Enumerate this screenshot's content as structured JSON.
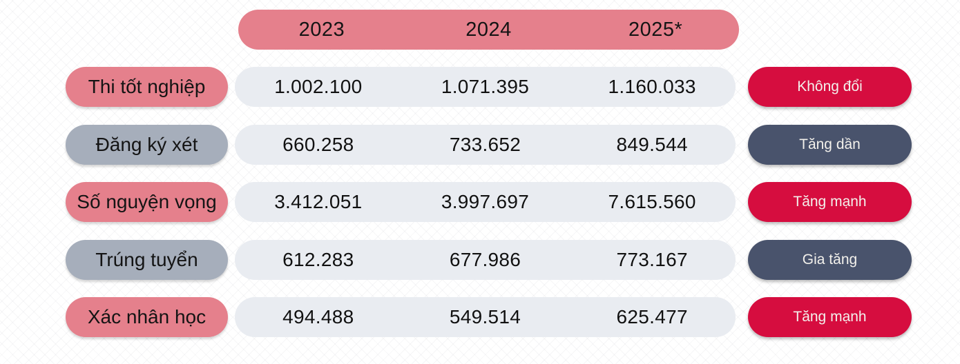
{
  "colors": {
    "pink": "#E5808C",
    "gray": "#A6AEBB",
    "value_pill": "#E9ECF1",
    "red": "#D60D3F",
    "dark": "#49536C",
    "text_dark": "#141414",
    "badge_text": "#F3F1EC",
    "background": "#FFFFFF"
  },
  "table": {
    "header": {
      "years": [
        "2023",
        "2024",
        "2025*"
      ]
    },
    "rows": [
      {
        "label": "Thi tốt nghiệp",
        "values": [
          "1.002.100",
          "1.071.395",
          "1.160.033"
        ],
        "status": "Không đổi",
        "label_variant": "pink",
        "status_variant": "red"
      },
      {
        "label": "Đăng ký xét",
        "values": [
          "660.258",
          "733.652",
          "849.544"
        ],
        "status": "Tăng dần",
        "label_variant": "gray",
        "status_variant": "dark"
      },
      {
        "label": "Số nguyện vọng",
        "values": [
          "3.412.051",
          "3.997.697",
          "7.615.560"
        ],
        "status": "Tăng mạnh",
        "label_variant": "pink",
        "status_variant": "red"
      },
      {
        "label": "Trúng tuyển",
        "values": [
          "612.283",
          "677.986",
          "773.167"
        ],
        "status": "Gia tăng",
        "label_variant": "gray",
        "status_variant": "dark"
      },
      {
        "label": "Xác nhân học",
        "values": [
          "494.488",
          "549.514",
          "625.477"
        ],
        "status": "Tăng mạnh",
        "label_variant": "pink",
        "status_variant": "red"
      }
    ]
  },
  "chart_data": {
    "type": "table",
    "columns": [
      "2023",
      "2024",
      "2025*"
    ],
    "row_headers": [
      "Thi tốt nghiệp",
      "Đăng ký xét",
      "Số nguyện vọng",
      "Trúng tuyển",
      "Xác nhân học"
    ],
    "values": [
      [
        1002100,
        1071395,
        1160033
      ],
      [
        660258,
        733652,
        849544
      ],
      [
        3412051,
        3997697,
        7615560
      ],
      [
        612283,
        677986,
        773167
      ],
      [
        494488,
        549514,
        625477
      ]
    ],
    "trend_labels": [
      "Không đổi",
      "Tăng dần",
      "Tăng mạnh",
      "Gia tăng",
      "Tăng mạnh"
    ]
  }
}
